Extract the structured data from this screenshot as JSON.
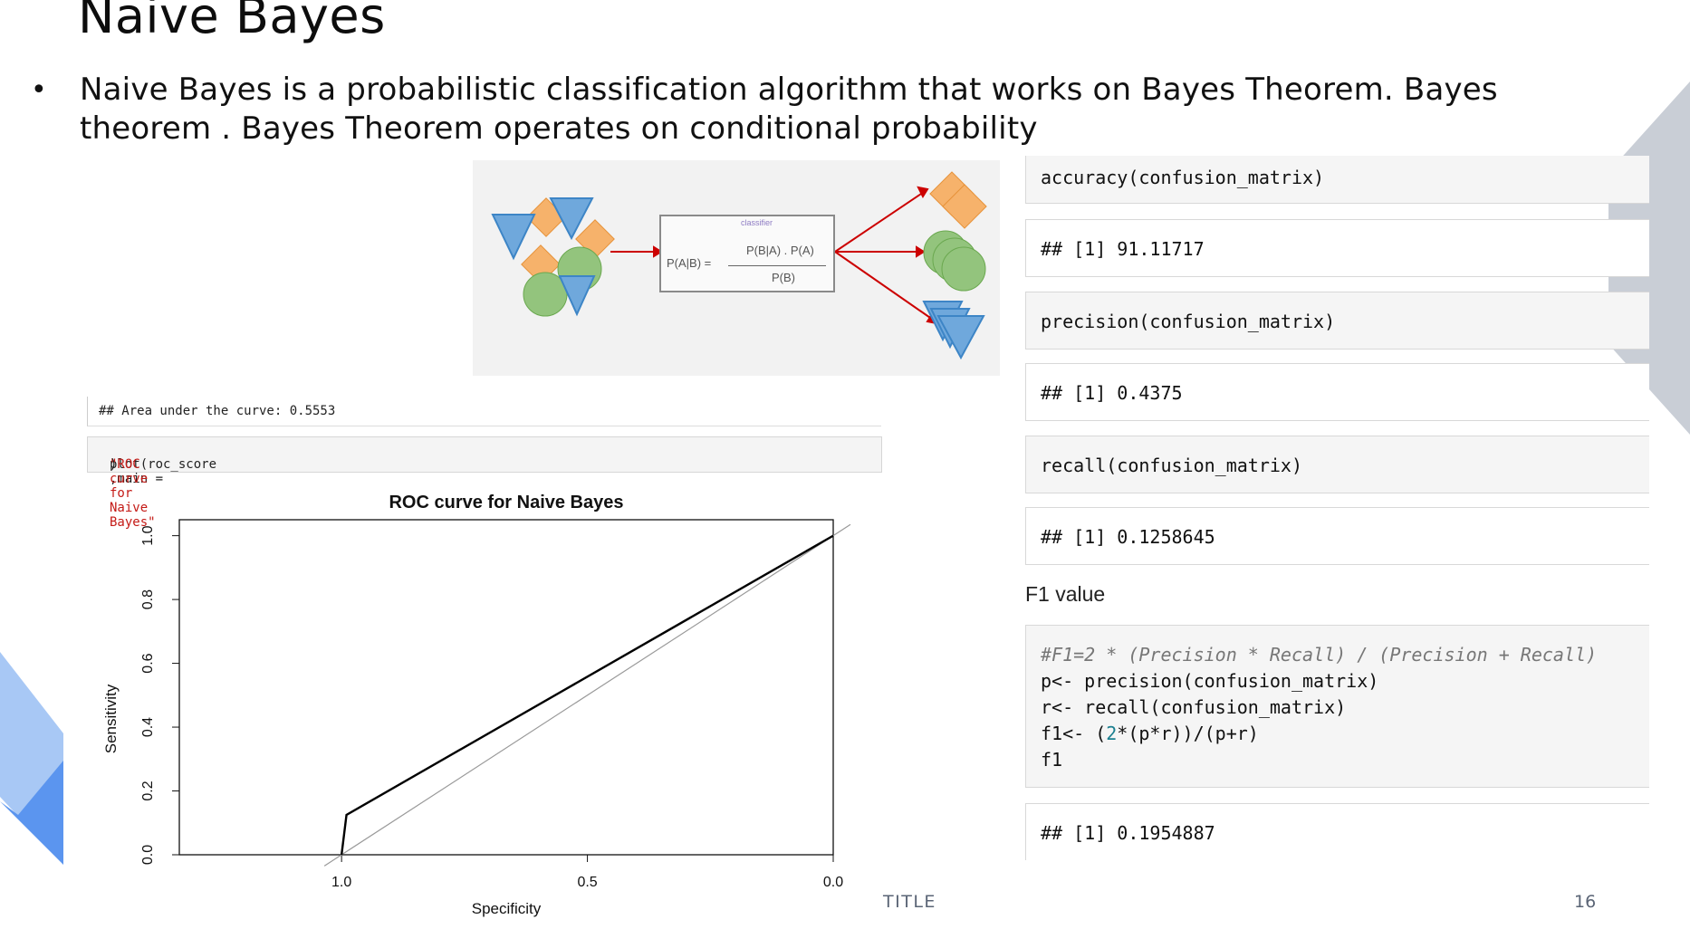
{
  "slide": {
    "title": "Naive Bayes",
    "bullet": "Naive Bayes is a probabilistic classification algorithm that works on Bayes Theorem. Bayes theorem . Bayes Theorem operates on conditional probability",
    "footer_title": "TITLE",
    "page_number": "16"
  },
  "figure": {
    "classifier_label": "classifier",
    "formula_lhs": "P(A|B) =",
    "numerator": "P(B|A) . P(A)",
    "denominator": "P(B)"
  },
  "roc_code": {
    "output": "## Area under the curve: 0.5553",
    "input_prefix": "plot(roc_score ,main =",
    "input_string": "\"ROC curve for Naive Bayes\"",
    "input_suffix": ")"
  },
  "chart_data": {
    "type": "line",
    "title": "ROC curve for Naive Bayes",
    "xlabel": "Specificity",
    "ylabel": "Sensitivity",
    "xlim": [
      1.33,
      0.0
    ],
    "ylim": [
      0.0,
      1.05
    ],
    "x_reversed": true,
    "x_ticks": [
      "1.0",
      "0.5",
      "0.0"
    ],
    "y_ticks": [
      "0.0",
      "0.2",
      "0.4",
      "0.6",
      "0.8",
      "1.0"
    ],
    "series": [
      {
        "x": [
          1.0,
          0.99,
          0.0
        ],
        "y": [
          0.0,
          0.125,
          1.0
        ]
      }
    ],
    "reference_line": {
      "x": [
        1.0,
        0.0
      ],
      "y": [
        0.0,
        1.0
      ]
    }
  },
  "metrics": {
    "accuracy_cmd": "accuracy(confusion_matrix)",
    "accuracy_out": "## [1] 91.11717",
    "precision_cmd": "precision(confusion_matrix)",
    "precision_out": "## [1] 0.4375",
    "recall_cmd": "recall(confusion_matrix)",
    "recall_out": "## [1] 0.1258645",
    "f1_heading": "F1 value",
    "f1_comment": "#F1=2 * (Precision * Recall) / (Precision + Recall)",
    "f1_line1": "p<- precision(confusion_matrix)",
    "f1_line2": "r<- recall(confusion_matrix)",
    "f1_line3_a": "f1<- (",
    "f1_line3_num": "2",
    "f1_line3_b": "*(p*r))/(p+r)",
    "f1_line4": "f1",
    "f1_out": "## [1] 0.1954887"
  },
  "colors": {
    "accent_blue": "#6fa8dc",
    "decor_blue_light": "#a8c8f5",
    "decor_blue_dark": "#5b95ef",
    "decor_gray": "#c9ced6",
    "shape_orange": "#f6b26b",
    "shape_green": "#93c47d",
    "arrow_red": "#cc0000"
  }
}
